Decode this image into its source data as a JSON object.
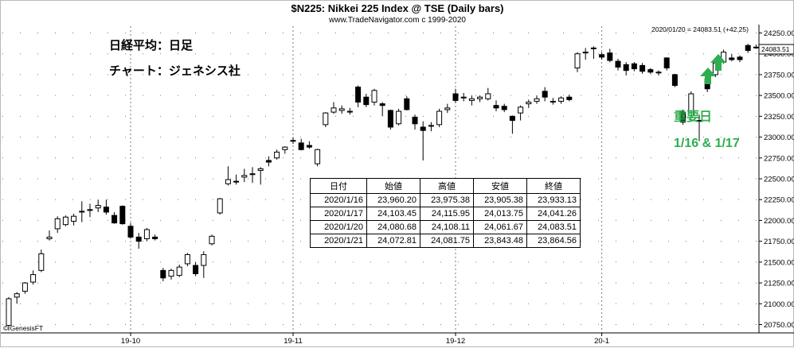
{
  "chart_data": {
    "type": "candlestick",
    "title": "$N225:  Nikkei 225 Index @ TSE  (Daily bars)",
    "subtitle": "www.TradeNavigator.com c 1999-2020",
    "readout": "2020/01/20 = 24083.51 (+42.25)",
    "last_price_label": "24083.51",
    "copyright": "© GenesisFT",
    "ylim": [
      20650,
      24350
    ],
    "y_ticks": [
      20750,
      21000,
      21250,
      21500,
      21750,
      22000,
      22250,
      22500,
      22750,
      23000,
      23250,
      23500,
      23750,
      24000,
      24250
    ],
    "y_tick_labels": [
      "20750.00",
      "21000.00",
      "21250.00",
      "21500.00",
      "21750.00",
      "22000.00",
      "22250.00",
      "22500.00",
      "22750.00",
      "23000.00",
      "23250.00",
      "23500.00",
      "23750.00",
      "24000.00",
      "24250.00"
    ],
    "x_labels": [
      {
        "label": "19-10",
        "bar": 15
      },
      {
        "label": "19-11",
        "bar": 35
      },
      {
        "label": "19-12",
        "bar": 55
      },
      {
        "label": "20-1",
        "bar": 73
      }
    ],
    "x_grid_bars": [
      15,
      35,
      55,
      73
    ],
    "grid": true,
    "bars": [
      {
        "o": 20740,
        "h": 21080,
        "l": 20680,
        "c": 21060
      },
      {
        "o": 21080,
        "h": 21140,
        "l": 21000,
        "c": 21120
      },
      {
        "o": 21150,
        "h": 21260,
        "l": 21120,
        "c": 21250
      },
      {
        "o": 21260,
        "h": 21400,
        "l": 21230,
        "c": 21350
      },
      {
        "o": 21400,
        "h": 21650,
        "l": 21380,
        "c": 21600
      },
      {
        "o": 21780,
        "h": 21880,
        "l": 21760,
        "c": 21800
      },
      {
        "o": 21900,
        "h": 22050,
        "l": 21850,
        "c": 22020
      },
      {
        "o": 21950,
        "h": 22060,
        "l": 21930,
        "c": 22040
      },
      {
        "o": 21990,
        "h": 22080,
        "l": 21940,
        "c": 22050
      },
      {
        "o": 22100,
        "h": 22230,
        "l": 21980,
        "c": 22110
      },
      {
        "o": 22120,
        "h": 22200,
        "l": 22040,
        "c": 22130
      },
      {
        "o": 22150,
        "h": 22250,
        "l": 22100,
        "c": 22180
      },
      {
        "o": 22160,
        "h": 22250,
        "l": 22070,
        "c": 22100
      },
      {
        "o": 22060,
        "h": 22100,
        "l": 21960,
        "c": 21970
      },
      {
        "o": 22170,
        "h": 22180,
        "l": 21950,
        "c": 21960
      },
      {
        "o": 21930,
        "h": 21970,
        "l": 21780,
        "c": 21800
      },
      {
        "o": 21800,
        "h": 21850,
        "l": 21660,
        "c": 21750
      },
      {
        "o": 21780,
        "h": 21910,
        "l": 21750,
        "c": 21890
      },
      {
        "o": 21800,
        "h": 21830,
        "l": 21760,
        "c": 21780
      },
      {
        "o": 21400,
        "h": 21430,
        "l": 21270,
        "c": 21310
      },
      {
        "o": 21330,
        "h": 21420,
        "l": 21290,
        "c": 21400
      },
      {
        "o": 21340,
        "h": 21470,
        "l": 21320,
        "c": 21440
      },
      {
        "o": 21480,
        "h": 21610,
        "l": 21450,
        "c": 21590
      },
      {
        "o": 21460,
        "h": 21500,
        "l": 21330,
        "c": 21360
      },
      {
        "o": 21460,
        "h": 21630,
        "l": 21310,
        "c": 21590
      },
      {
        "o": 21720,
        "h": 21830,
        "l": 21700,
        "c": 21810
      },
      {
        "o": 22090,
        "h": 22270,
        "l": 22070,
        "c": 22260
      },
      {
        "o": 22440,
        "h": 22650,
        "l": 22420,
        "c": 22490
      },
      {
        "o": 22470,
        "h": 22550,
        "l": 22430,
        "c": 22460
      },
      {
        "o": 22520,
        "h": 22620,
        "l": 22460,
        "c": 22540
      },
      {
        "o": 22550,
        "h": 22640,
        "l": 22450,
        "c": 22560
      },
      {
        "o": 22600,
        "h": 22640,
        "l": 22430,
        "c": 22620
      },
      {
        "o": 22720,
        "h": 22770,
        "l": 22650,
        "c": 22700
      },
      {
        "o": 22750,
        "h": 22850,
        "l": 22730,
        "c": 22820
      },
      {
        "o": 22850,
        "h": 22890,
        "l": 22800,
        "c": 22880
      },
      {
        "o": 22950,
        "h": 23000,
        "l": 22920,
        "c": 22960
      },
      {
        "o": 22930,
        "h": 22980,
        "l": 22840,
        "c": 22850
      },
      {
        "o": 22900,
        "h": 22950,
        "l": 22860,
        "c": 22880
      },
      {
        "o": 22680,
        "h": 22860,
        "l": 22650,
        "c": 22850
      },
      {
        "o": 23150,
        "h": 23300,
        "l": 23120,
        "c": 23290
      },
      {
        "o": 23300,
        "h": 23420,
        "l": 23280,
        "c": 23350
      },
      {
        "o": 23320,
        "h": 23380,
        "l": 23280,
        "c": 23340
      },
      {
        "o": 23300,
        "h": 23350,
        "l": 23270,
        "c": 23310
      },
      {
        "o": 23600,
        "h": 23620,
        "l": 23360,
        "c": 23420
      },
      {
        "o": 23480,
        "h": 23520,
        "l": 23360,
        "c": 23390
      },
      {
        "o": 23420,
        "h": 23580,
        "l": 23380,
        "c": 23560
      },
      {
        "o": 23400,
        "h": 23420,
        "l": 23250,
        "c": 23380
      },
      {
        "o": 23320,
        "h": 23330,
        "l": 23090,
        "c": 23120
      },
      {
        "o": 23160,
        "h": 23340,
        "l": 23140,
        "c": 23310
      },
      {
        "o": 23460,
        "h": 23490,
        "l": 23320,
        "c": 23330
      },
      {
        "o": 23240,
        "h": 23270,
        "l": 23090,
        "c": 23160
      },
      {
        "o": 23120,
        "h": 23190,
        "l": 22720,
        "c": 23080
      },
      {
        "o": 23130,
        "h": 23180,
        "l": 23070,
        "c": 23140
      },
      {
        "o": 23150,
        "h": 23340,
        "l": 23120,
        "c": 23310
      },
      {
        "o": 23330,
        "h": 23400,
        "l": 23290,
        "c": 23350
      },
      {
        "o": 23520,
        "h": 23580,
        "l": 23410,
        "c": 23440
      },
      {
        "o": 23470,
        "h": 23530,
        "l": 23430,
        "c": 23480
      },
      {
        "o": 23440,
        "h": 23500,
        "l": 23380,
        "c": 23460
      },
      {
        "o": 23460,
        "h": 23500,
        "l": 23420,
        "c": 23480
      },
      {
        "o": 23460,
        "h": 23590,
        "l": 23440,
        "c": 23520
      },
      {
        "o": 23380,
        "h": 23440,
        "l": 23310,
        "c": 23350
      },
      {
        "o": 23370,
        "h": 23400,
        "l": 23300,
        "c": 23330
      },
      {
        "o": 23250,
        "h": 23260,
        "l": 23040,
        "c": 23200
      },
      {
        "o": 23290,
        "h": 23380,
        "l": 23200,
        "c": 23360
      },
      {
        "o": 23400,
        "h": 23450,
        "l": 23350,
        "c": 23420
      },
      {
        "o": 23430,
        "h": 23500,
        "l": 23400,
        "c": 23460
      },
      {
        "o": 23550,
        "h": 23600,
        "l": 23430,
        "c": 23480
      },
      {
        "o": 23420,
        "h": 23470,
        "l": 23390,
        "c": 23430
      },
      {
        "o": 23430,
        "h": 23490,
        "l": 23400,
        "c": 23470
      },
      {
        "o": 23480,
        "h": 23510,
        "l": 23430,
        "c": 23450
      },
      {
        "o": 23830,
        "h": 24020,
        "l": 23780,
        "c": 24000
      },
      {
        "o": 24010,
        "h": 24070,
        "l": 23930,
        "c": 24020
      },
      {
        "o": 24060,
        "h": 24090,
        "l": 23940,
        "c": 24070
      },
      {
        "o": 23990,
        "h": 24020,
        "l": 23930,
        "c": 23960
      },
      {
        "o": 24010,
        "h": 24060,
        "l": 23900,
        "c": 23920
      },
      {
        "o": 23910,
        "h": 23940,
        "l": 23800,
        "c": 23840
      },
      {
        "o": 23870,
        "h": 23900,
        "l": 23740,
        "c": 23800
      },
      {
        "o": 23880,
        "h": 23900,
        "l": 23790,
        "c": 23820
      },
      {
        "o": 23860,
        "h": 23890,
        "l": 23760,
        "c": 23790
      },
      {
        "o": 23810,
        "h": 23830,
        "l": 23760,
        "c": 23780
      },
      {
        "o": 23770,
        "h": 23800,
        "l": 23740,
        "c": 23780
      },
      {
        "o": 23950,
        "h": 23960,
        "l": 23800,
        "c": 23830
      },
      {
        "o": 23750,
        "h": 23760,
        "l": 23600,
        "c": 23620
      },
      {
        "o": 23300,
        "h": 23330,
        "l": 23150,
        "c": 23180
      },
      {
        "o": 23260,
        "h": 23550,
        "l": 23240,
        "c": 23520
      },
      {
        "o": 23200,
        "h": 23270,
        "l": 22950,
        "c": 23200
      },
      {
        "o": 23700,
        "h": 23760,
        "l": 23540,
        "c": 23580
      },
      {
        "o": 23750,
        "h": 23900,
        "l": 23720,
        "c": 23890
      },
      {
        "o": 23900,
        "h": 24050,
        "l": 23880,
        "c": 24020
      },
      {
        "o": 23950,
        "h": 24000,
        "l": 23910,
        "c": 23930
      },
      {
        "o": 23960,
        "h": 23980,
        "l": 23900,
        "c": 23930
      },
      {
        "o": 24100,
        "h": 24120,
        "l": 24010,
        "c": 24040
      },
      {
        "o": 24080,
        "h": 24110,
        "l": 24060,
        "c": 24080
      }
    ],
    "annotations": {
      "note_line1": "日経平均：日足",
      "note_line2": "チャート：ジェネシス社",
      "important_label": "重要日",
      "dates_label": "1/16 & 1/17"
    },
    "table": {
      "headers": [
        "日付",
        "始値",
        "高値",
        "安値",
        "終値"
      ],
      "rows": [
        [
          "2020/1/16",
          "23,960.20",
          "23,975.38",
          "23,905.38",
          "23,933.13"
        ],
        [
          "2020/1/17",
          "24,103.45",
          "24,115.95",
          "24,013.75",
          "24,041.26"
        ],
        [
          "2020/1/20",
          "24,080.68",
          "24,108.11",
          "24,061.67",
          "24,083.51"
        ],
        [
          "2020/1/21",
          "24,072.81",
          "24,081.75",
          "23,843.48",
          "23,864.56"
        ]
      ]
    },
    "colors": {
      "up_fill": "#ffffff",
      "down_fill": "#000000",
      "candle_stroke": "#000000",
      "grid": "#7a7a7a",
      "arrow": "#2eae4f",
      "annotation_green": "#2eae4f"
    }
  }
}
